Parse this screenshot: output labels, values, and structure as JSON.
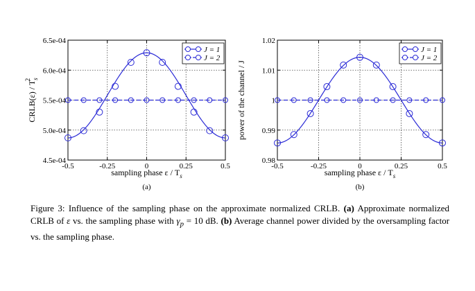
{
  "caption": {
    "figure_label": "Figure 3:",
    "lead": "Influence of the sampling phase on the approximate normalized CRLB.",
    "part_a_tag": "(a)",
    "part_a_text_1": "Approximate normalized CRLB of",
    "epsilon": "ε",
    "part_a_text_2": "vs. the sampling phase with",
    "gamma": "γ",
    "gamma_sub": "p",
    "part_a_text_3": "= 10 dB.",
    "part_b_tag": "(b)",
    "part_b_text": "Average channel power divided by the oversampling factor vs. the sampling phase."
  },
  "chart_data": [
    {
      "type": "line",
      "panel_label": "(a)",
      "xlabel": "sampling phase ε / T_s",
      "ylabel": "CRLB(ε) / T_s^2",
      "xlim": [
        -0.5,
        0.5
      ],
      "ylim": [
        0.00045,
        0.00065
      ],
      "x_ticks": [
        "-0.5",
        "-0.25",
        "0",
        "0.25",
        "0.5"
      ],
      "y_ticks": [
        "4.5e-04",
        "5.0e-04",
        "5.5e-04",
        "6.0e-04",
        "6.5e-04"
      ],
      "grid": "dotted at tick positions",
      "legend_position": "top-right",
      "x": [
        -0.5,
        -0.4,
        -0.3,
        -0.2,
        -0.1,
        0.0,
        0.1,
        0.2,
        0.3,
        0.4,
        0.5
      ],
      "series": [
        {
          "name": "J = 1",
          "line": "solid",
          "marker": "circle",
          "values": [
            0.000487,
            0.000499,
            0.00053,
            0.000573,
            0.000613,
            0.000629,
            0.000613,
            0.000573,
            0.00053,
            0.000499,
            0.000487
          ]
        },
        {
          "name": "J = 2",
          "line": "dashed",
          "marker": "circle",
          "values": [
            0.00055,
            0.00055,
            0.00055,
            0.00055,
            0.00055,
            0.00055,
            0.00055,
            0.00055,
            0.00055,
            0.00055,
            0.00055
          ]
        }
      ]
    },
    {
      "type": "line",
      "panel_label": "(b)",
      "xlabel": "sampling phase ε / T_s",
      "ylabel": "power of the channel / J",
      "xlim": [
        -0.5,
        0.5
      ],
      "ylim": [
        0.98,
        1.02
      ],
      "x_ticks": [
        "-0.5",
        "-0.25",
        "0",
        "0.25",
        "0.5"
      ],
      "y_ticks": [
        "0.98",
        "0.99",
        "1",
        "1.01",
        "1.02"
      ],
      "grid": "dotted at tick positions",
      "legend_position": "top-right",
      "x": [
        -0.5,
        -0.4,
        -0.3,
        -0.2,
        -0.1,
        0.0,
        0.1,
        0.2,
        0.3,
        0.4,
        0.5
      ],
      "series": [
        {
          "name": "J = 1",
          "line": "solid",
          "marker": "circle",
          "values": [
            0.9857,
            0.9885,
            0.9955,
            1.0045,
            1.0117,
            1.0143,
            1.0117,
            1.0045,
            0.9955,
            0.9885,
            0.9857
          ]
        },
        {
          "name": "J = 2",
          "line": "dashed",
          "marker": "circle",
          "values": [
            1.0,
            1.0,
            1.0,
            1.0,
            1.0,
            1.0,
            1.0,
            1.0,
            1.0,
            1.0,
            1.0
          ]
        }
      ]
    }
  ],
  "colors": {
    "series": "#2a2ad6",
    "axis": "#000000",
    "grid": "#444444"
  }
}
